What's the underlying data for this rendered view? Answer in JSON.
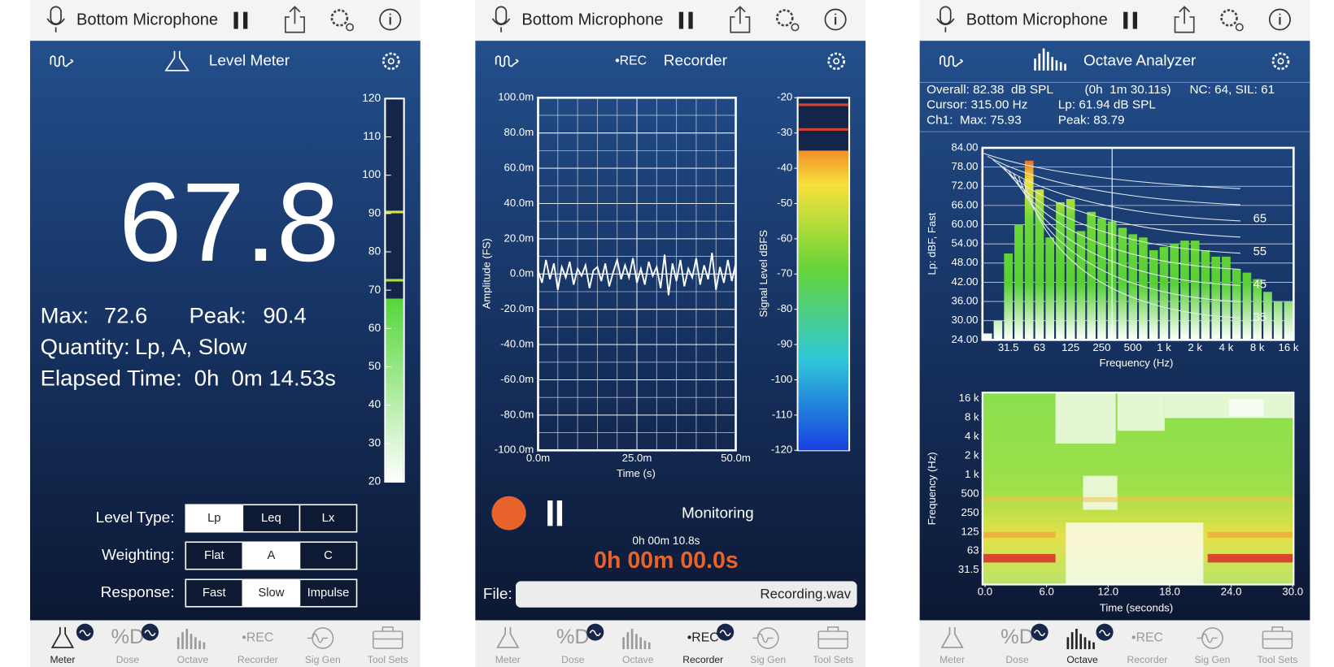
{
  "meter_screen": {
    "header": {
      "title": "Bottom Microphone"
    },
    "toolbar": {
      "title": "Level Meter"
    },
    "reading": 67.8,
    "stats": {
      "max_label": "Max:",
      "max": 72.6,
      "peak_label": "Peak:",
      "peak": 90.4,
      "quantity_label": "Quantity:",
      "quantity": "Lp, A, Slow",
      "elapsed_label": "Elapsed Time:",
      "elapsed": "0h  0m 14.53s"
    },
    "scale": {
      "ylim": [
        20,
        120
      ],
      "yticks": [
        120,
        110,
        100,
        90,
        80,
        70,
        60,
        50,
        40,
        30,
        20
      ]
    },
    "controls": [
      {
        "label": "Level Type:",
        "options": [
          "Lp",
          "Leq",
          "Lx"
        ],
        "selected": 0
      },
      {
        "label": "Weighting:",
        "options": [
          "Flat",
          "A",
          "C"
        ],
        "selected": 1
      },
      {
        "label": "Response:",
        "options": [
          "Fast",
          "Slow",
          "Impulse"
        ],
        "selected": 1
      }
    ],
    "tabs": {
      "items": [
        {
          "label": "Meter"
        },
        {
          "label": "Dose",
          "icon": "%D"
        },
        {
          "label": "Octave"
        },
        {
          "label": "Recorder",
          "icon": "•REC"
        },
        {
          "label": "Sig Gen"
        },
        {
          "label": "Tool Sets"
        }
      ],
      "active": 0
    }
  },
  "recorder_screen": {
    "header": {
      "title": "Bottom Microphone"
    },
    "toolbar": {
      "rec": "•REC",
      "title": "Recorder"
    },
    "waveform": {
      "type": "line",
      "ylabel": "Amplitude (FS)",
      "xlabel": "Time (s)",
      "ylim": [
        -100,
        100
      ],
      "xlim": [
        0,
        50
      ],
      "yticks": [
        {
          "value": 100,
          "label": "100.0m"
        },
        {
          "value": 80,
          "label": "80.0m"
        },
        {
          "value": 60,
          "label": "60.0m"
        },
        {
          "value": 40,
          "label": "40.0m"
        },
        {
          "value": 20,
          "label": "20.0m"
        },
        {
          "value": 0,
          "label": "0.0m"
        },
        {
          "value": -20,
          "label": "-20.0m"
        },
        {
          "value": -40,
          "label": "-40.0m"
        },
        {
          "value": -60,
          "label": "-60.0m"
        },
        {
          "value": -80,
          "label": "-80.0m"
        },
        {
          "value": -100,
          "label": "-100.0m"
        }
      ],
      "xticks": [
        {
          "value": 0,
          "label": "0.0m"
        },
        {
          "value": 25,
          "label": "25.0m"
        },
        {
          "value": 50,
          "label": "50.0m"
        }
      ],
      "x": [
        0,
        1,
        2,
        3,
        4,
        5,
        6,
        7,
        8,
        9,
        10,
        11,
        12,
        13,
        14,
        15,
        16,
        17,
        18,
        19,
        20,
        21,
        22,
        23,
        24,
        25,
        26,
        27,
        28,
        29,
        30,
        31,
        32,
        33,
        34,
        35,
        36,
        37,
        38,
        39,
        40,
        41,
        42,
        43,
        44,
        45,
        46,
        47,
        48,
        49,
        50
      ],
      "values": [
        2,
        -5,
        8,
        -3,
        6,
        -9,
        4,
        -2,
        7,
        -6,
        3,
        -1,
        5,
        -8,
        2,
        4,
        -4,
        6,
        -7,
        1,
        8,
        -3,
        5,
        -2,
        9,
        -5,
        3,
        -6,
        7,
        -1,
        4,
        -8,
        11,
        -12,
        6,
        -4,
        8,
        -7,
        3,
        -2,
        9,
        -6,
        5,
        -3,
        12,
        -9,
        4,
        -5,
        8,
        -4,
        6
      ],
      "color": "#ffffff"
    },
    "level_meter": {
      "label": "Signal Level dBFS",
      "ylim": [
        -120,
        -20
      ],
      "yticks": [
        -20,
        -30,
        -40,
        -50,
        -60,
        -70,
        -80,
        -90,
        -100,
        -110,
        -120
      ],
      "level": -35,
      "peaks": [
        -22,
        -29
      ]
    },
    "status": "Monitoring",
    "monitor_time": "0h 00m 10.8s",
    "record_time": "0h 00m 00.0s",
    "file_label": "File:",
    "file_name": "Recording.wav",
    "tabs": {
      "items": [
        {
          "label": "Meter"
        },
        {
          "label": "Dose",
          "icon": "%D"
        },
        {
          "label": "Octave"
        },
        {
          "label": "Recorder",
          "icon": "•REC"
        },
        {
          "label": "Sig Gen"
        },
        {
          "label": "Tool Sets"
        }
      ],
      "active": 3
    }
  },
  "octave_screen": {
    "header": {
      "title": "Bottom Microphone"
    },
    "toolbar": {
      "title": "Octave Analyzer"
    },
    "info": {
      "overall": "Overall: 82.38  dB SPL",
      "duration": "(0h  1m 30.11s)",
      "nc": "NC: 64, SIL: 61",
      "cursor": "Cursor: 315.00 Hz",
      "lp": "Lp: 61.94 dB SPL",
      "max": "Ch1:  Max: 75.93",
      "peak": "Peak: 83.79"
    },
    "spectrum": {
      "type": "bar",
      "ylabel": "Lp: dBF, Fast",
      "xlabel": "Frequency (Hz)",
      "ylim": [
        24,
        84
      ],
      "yticks": [
        {
          "value": 84,
          "label": "84.00"
        },
        {
          "value": 78,
          "label": "78.00"
        },
        {
          "value": 72,
          "label": "72.00"
        },
        {
          "value": 66,
          "label": "66.00"
        },
        {
          "value": 60,
          "label": "60.00"
        },
        {
          "value": 54,
          "label": "54.00"
        },
        {
          "value": 48,
          "label": "48.00"
        },
        {
          "value": 42,
          "label": "42.00"
        },
        {
          "value": 36,
          "label": "36.00"
        },
        {
          "value": 30,
          "label": "30.00"
        },
        {
          "value": 24,
          "label": "24.00"
        }
      ],
      "categories": [
        null,
        null,
        "31.5",
        null,
        null,
        "63",
        null,
        null,
        "125",
        null,
        null,
        "250",
        null,
        null,
        "500",
        null,
        null,
        "1 k",
        null,
        null,
        "2 k",
        null,
        null,
        "4 k",
        null,
        null,
        "8 k",
        null,
        null,
        "16 k"
      ],
      "values": [
        26,
        30,
        51,
        60,
        80,
        71,
        56,
        67,
        68,
        58,
        64,
        62,
        61,
        59,
        57,
        56,
        52,
        53,
        54,
        55,
        55,
        52,
        50,
        50,
        46,
        45,
        43,
        39,
        36,
        36
      ],
      "nc_labels": [
        "65",
        "55",
        "45",
        "35"
      ]
    },
    "spectrogram": {
      "ylabel": "Frequency (Hz)",
      "xlabel": "Time (seconds)",
      "yticks": [
        "16 k",
        "8 k",
        "4 k",
        "2 k",
        "1 k",
        "500",
        "250",
        "125",
        "63",
        "31.5"
      ],
      "xlim": [
        0,
        30
      ],
      "xticks": [
        {
          "value": 0,
          "label": "0.0"
        },
        {
          "value": 6,
          "label": "6.0"
        },
        {
          "value": 12,
          "label": "12.0"
        },
        {
          "value": 18,
          "label": "18.0"
        },
        {
          "value": 24,
          "label": "24.0"
        },
        {
          "value": 30,
          "label": "30.0"
        }
      ]
    },
    "tabs": {
      "items": [
        {
          "label": "Meter"
        },
        {
          "label": "Dose",
          "icon": "%D"
        },
        {
          "label": "Octave"
        },
        {
          "label": "Recorder",
          "icon": "•REC"
        },
        {
          "label": "Sig Gen"
        },
        {
          "label": "Tool Sets"
        }
      ],
      "active": 2
    }
  }
}
